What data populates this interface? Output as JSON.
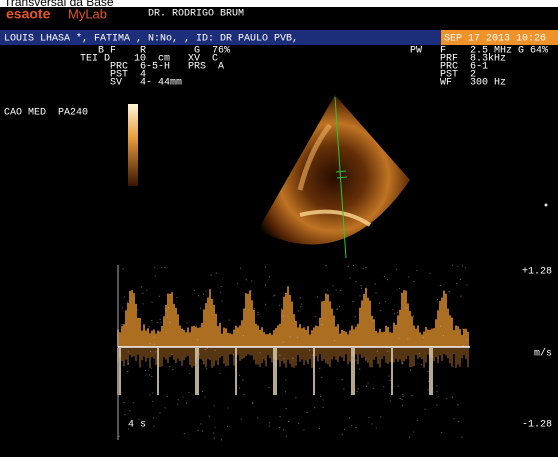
{
  "header": {
    "title": "Transversal da Base",
    "brand": "esaote",
    "product": "MyLab",
    "doctor": "DR. RODRIGO BRUM"
  },
  "patient_bar": {
    "text": "LOUIS LHASA *, FATIMA , N:No, , ID: DR PAULO PVB,",
    "datetime": "SEP 17 2013 10:26"
  },
  "params_left": [
    "   B F    R        G  76%",
    "TEI D    10  cm   XV  C",
    "     PRC  6-5-H   PRS  A",
    "     PST  4",
    "     SV   4- 44mm"
  ],
  "params_right": [
    "PW   F    2.5 MHz G 64%",
    "     PRF  8.3kHz",
    "     PRC  6-1",
    "     PST  2",
    "     WF   300 Hz"
  ],
  "probe": "CAO MED  PA240",
  "doppler": {
    "top_label": "+1.28",
    "unit": "m/s",
    "bottom_label": "-1.28",
    "time": "4 s"
  }
}
